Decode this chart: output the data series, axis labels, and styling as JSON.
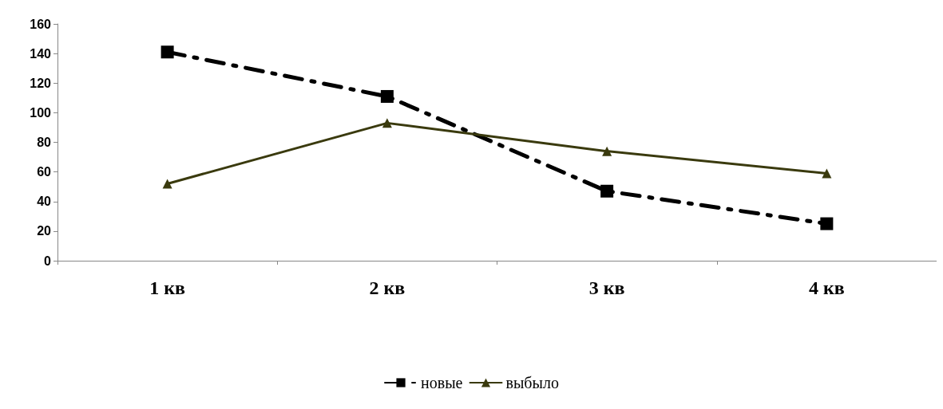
{
  "chart_data": {
    "type": "line",
    "categories": [
      "1 кв",
      "2 кв",
      "3 кв",
      "4 кв"
    ],
    "series": [
      {
        "name": "новые",
        "color": "#000000",
        "values": [
          141,
          111,
          47,
          25
        ],
        "marker": "square",
        "line_style": "dashed"
      },
      {
        "name": "выбыло",
        "color": "#3a3a0e",
        "values": [
          52,
          93,
          74,
          59
        ],
        "marker": "triangle",
        "line_style": "solid"
      }
    ],
    "ylim": [
      0,
      160
    ],
    "yticks": [
      0,
      20,
      40,
      60,
      80,
      100,
      120,
      140,
      160
    ],
    "grid": false,
    "legend": "bottom"
  }
}
